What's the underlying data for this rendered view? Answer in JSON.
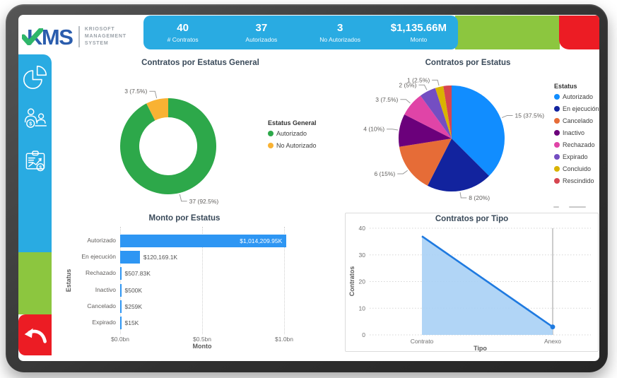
{
  "logo": {
    "name": "KMS",
    "subtitle_lines": [
      "KRIOSOFT",
      "MANAGEMENT",
      "SYSTEM"
    ],
    "colors": {
      "kms_blue": "#2B5DAD",
      "check_green": "#2FB66A"
    }
  },
  "header": {
    "stats": [
      {
        "value": "40",
        "label": "# Contratos"
      },
      {
        "value": "37",
        "label": "Autorizados"
      },
      {
        "value": "3",
        "label": "No Autorizados"
      },
      {
        "value": "$1,135.66M",
        "label": "Monto"
      }
    ],
    "colors": {
      "blue": "#29ABE2",
      "green": "#8CC63F",
      "red": "#EC1C24"
    }
  },
  "sidebar": {
    "icons": [
      {
        "name": "pie-chart-icon"
      },
      {
        "name": "team-finance-icon"
      },
      {
        "name": "contract-report-icon"
      }
    ],
    "back_button": {
      "name": "back-arrow-icon"
    },
    "colors": {
      "blue": "#29ABE2",
      "green": "#8CC63F",
      "red": "#EC1C24"
    }
  },
  "chart_data": [
    {
      "id": "estatus-general",
      "type": "donut",
      "title": "Contratos por Estatus General",
      "legend_title": "Estatus General",
      "legend_position": "right",
      "slices": [
        {
          "label": "Autorizado",
          "value": 37,
          "pct": 92.5,
          "callout": "37 (92.5%)",
          "color": "#2DA84A"
        },
        {
          "label": "No Autorizado",
          "value": 3,
          "pct": 7.5,
          "callout": "3 (7.5%)",
          "color": "#F9B233"
        }
      ]
    },
    {
      "id": "estatus",
      "type": "pie",
      "title": "Contratos por Estatus",
      "legend_title": "Estatus",
      "legend_position": "right",
      "slices": [
        {
          "label": "Autorizado",
          "value": 15,
          "pct": 37.5,
          "callout": "15 (37.5%)",
          "color": "#118DFF"
        },
        {
          "label": "En ejecución",
          "value": 8,
          "pct": 20,
          "callout": "8 (20%)",
          "color": "#12239E"
        },
        {
          "label": "Cancelado",
          "value": 6,
          "pct": 15,
          "callout": "6 (15%)",
          "color": "#E66C37"
        },
        {
          "label": "Inactivo",
          "value": 4,
          "pct": 10,
          "callout": "4 (10%)",
          "color": "#6B007B"
        },
        {
          "label": "Rechazado",
          "value": 3,
          "pct": 7.5,
          "callout": "3 (7.5%)",
          "color": "#E044A7"
        },
        {
          "label": "Expirado",
          "value": 2,
          "pct": 5,
          "callout": "2 (5%)",
          "color": "#744EC2"
        },
        {
          "label": "Concluido",
          "value": 1,
          "pct": 2.5,
          "callout": "1 (2.5%)",
          "color": "#D9B300"
        },
        {
          "label": "Rescindido",
          "value": 1,
          "pct": 2.5,
          "callout": "",
          "callout_hidden": true,
          "color": "#D64550"
        }
      ]
    },
    {
      "id": "monto-estatus",
      "type": "bar",
      "title": "Monto por Estatus",
      "xlabel": "Monto",
      "ylabel": "Estatus",
      "x_ticks": [
        "$0.0bn",
        "$0.5bn",
        "$1.0bn"
      ],
      "axis_max_thousands": 1000000,
      "bar_color": "#2E96F3",
      "bars": [
        {
          "label": "Autorizado",
          "value_thousands": 1014209.95,
          "display": "$1,014,209.95K",
          "label_inside": true
        },
        {
          "label": "En ejecución",
          "value_thousands": 120169.1,
          "display": "$120,169.1K",
          "label_inside": false
        },
        {
          "label": "Rechazado",
          "value_thousands": 507.83,
          "display": "$507.83K",
          "label_inside": false
        },
        {
          "label": "Inactivo",
          "value_thousands": 500,
          "display": "$500K",
          "label_inside": false
        },
        {
          "label": "Cancelado",
          "value_thousands": 259,
          "display": "$259K",
          "label_inside": false
        },
        {
          "label": "Expirado",
          "value_thousands": 15,
          "display": "$15K",
          "label_inside": false
        }
      ]
    },
    {
      "id": "contratos-tipo",
      "type": "area",
      "title": "Contratos por Tipo",
      "xlabel": "Tipo",
      "ylabel": "Contratos",
      "categories": [
        "Contrato",
        "Anexo"
      ],
      "values": [
        37,
        3
      ],
      "y_ticks": [
        0,
        10,
        20,
        30,
        40
      ],
      "ylim": [
        0,
        40
      ],
      "line_color": "#1F7AE0",
      "fill_color": "#A9D0F5",
      "ruler_color": "#ababab",
      "grid": true
    }
  ]
}
